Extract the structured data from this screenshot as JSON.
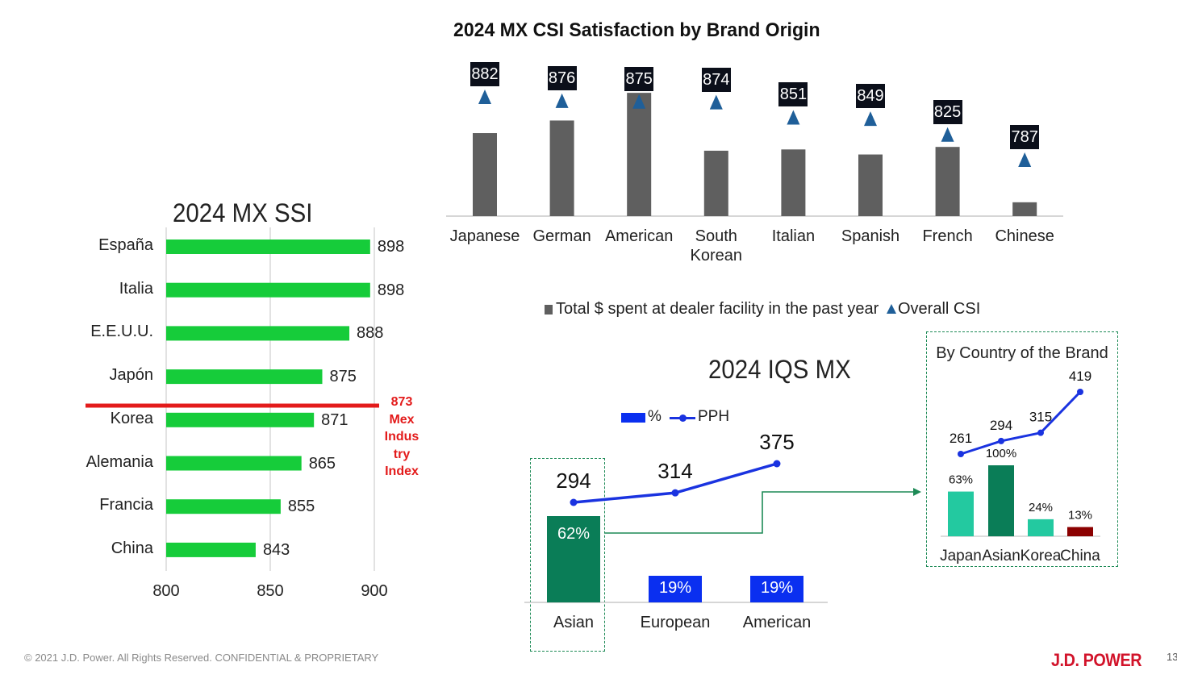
{
  "footer": {
    "copyright": "© 2021 J.D. Power. All Rights Reserved. CONFIDENTIAL & PROPRIETARY",
    "page_number": "13",
    "logo_text": "J.D. POWER"
  },
  "colors": {
    "bar_gray": "#5f5f5f",
    "csi_marker": "#1f5f99",
    "ssi_green": "#16cc3a",
    "index_red": "#e31b1b",
    "iqs_green": "#0a7d57",
    "iqs_blue": "#0a2ff0",
    "pph_line": "#1a33e0",
    "inset_teal": "#23c9a0",
    "inset_darkred": "#8b0000"
  },
  "chart_data": [
    {
      "id": "csi",
      "type": "bar",
      "title": "2024 MX CSI Satisfaction by Brand Origin",
      "categories": [
        "Japanese",
        "German",
        "American",
        "South Korean",
        "Italian",
        "Spanish",
        "French",
        "Chinese"
      ],
      "category_labels": [
        [
          "Japanese"
        ],
        [
          "German"
        ],
        [
          "American"
        ],
        [
          "South",
          "Korean"
        ],
        [
          "Italian"
        ],
        [
          "Spanish"
        ],
        [
          "French"
        ],
        [
          "Chinese"
        ]
      ],
      "series": [
        {
          "name": "Total $ spent at dealer facility in the past year",
          "kind": "bar",
          "values": [
            0.66,
            0.76,
            0.98,
            0.52,
            0.53,
            0.49,
            0.55,
            0.11
          ]
        },
        {
          "name": "Overall CSI",
          "kind": "marker",
          "values": [
            882,
            876,
            875,
            874,
            851,
            849,
            825,
            787
          ]
        }
      ],
      "legend": [
        "Total $ spent at dealer facility in the past year",
        "Overall CSI"
      ],
      "legend_position": "bottom"
    },
    {
      "id": "ssi",
      "type": "bar",
      "orientation": "horizontal",
      "title": "2024 MX SSI",
      "categories": [
        "España",
        "Italia",
        "E.E.U.U.",
        "Japón",
        "Korea",
        "Alemania",
        "Francia",
        "China"
      ],
      "values": [
        898,
        898,
        888,
        875,
        871,
        865,
        855,
        843
      ],
      "xlim": [
        800,
        900
      ],
      "xticks": [
        "800",
        "850",
        "900"
      ],
      "grid": true,
      "reference_line": {
        "value": 873,
        "label_lines": [
          "873",
          "Mex",
          "Indus",
          "try",
          "Index"
        ]
      }
    },
    {
      "id": "iqs",
      "type": "bar",
      "title": "2024 IQS MX",
      "categories": [
        "Asian",
        "European",
        "American"
      ],
      "series": [
        {
          "name": "%",
          "kind": "bar",
          "values": [
            62,
            19,
            19
          ],
          "labels": [
            "62%",
            "19%",
            "19%"
          ]
        },
        {
          "name": "PPH",
          "kind": "line",
          "values": [
            294,
            314,
            375
          ],
          "labels": [
            "294",
            "314",
            "375"
          ]
        }
      ],
      "legend": [
        "%",
        "PPH"
      ],
      "legend_position": "top"
    },
    {
      "id": "iqs_inset",
      "type": "bar",
      "title": "By Country of the Brand",
      "categories": [
        "Japan",
        "Asian",
        "Korea",
        "China"
      ],
      "series": [
        {
          "name": "%",
          "kind": "bar",
          "values": [
            63,
            100,
            24,
            13
          ],
          "labels": [
            "63%",
            "100%",
            "24%",
            "13%"
          ]
        },
        {
          "name": "PPH",
          "kind": "line",
          "values": [
            261,
            294,
            315,
            419
          ],
          "labels": [
            "261",
            "294",
            "315",
            "419"
          ]
        }
      ]
    }
  ]
}
